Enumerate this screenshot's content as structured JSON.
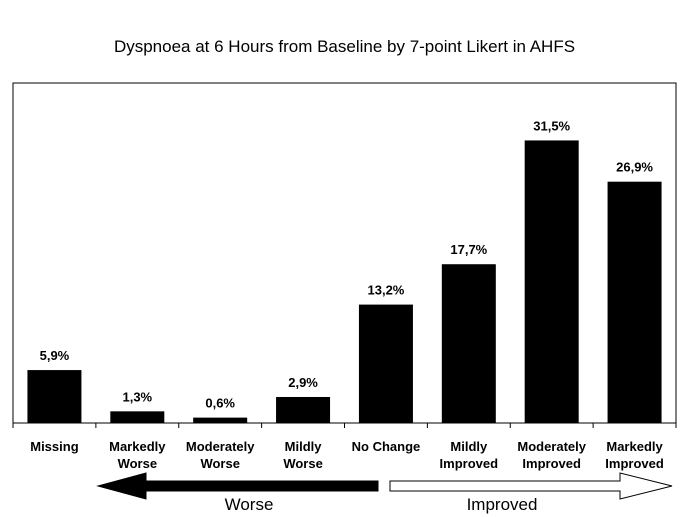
{
  "chart_data": {
    "type": "bar",
    "title": "Dyspnoea at 6 Hours from Baseline by 7-point Likert in AHFS",
    "xlabel": "",
    "ylabel": "",
    "categories": [
      [
        "Missing"
      ],
      [
        "Markedly",
        "Worse"
      ],
      [
        "Moderately",
        "Worse"
      ],
      [
        "Mildly",
        "Worse"
      ],
      [
        "No Change"
      ],
      [
        "Mildly",
        "Improved"
      ],
      [
        "Moderately",
        "Improved"
      ],
      [
        "Markedly",
        "Improved"
      ]
    ],
    "values": [
      5.9,
      1.3,
      0.6,
      2.9,
      13.2,
      17.7,
      31.5,
      26.9
    ],
    "data_labels": [
      "5,9%",
      "1,3%",
      "0,6%",
      "2,9%",
      "13,2%",
      "17,7%",
      "31,5%",
      "26,9%"
    ],
    "ylim": [
      0,
      34
    ],
    "bar_color": "#000000",
    "grid": false,
    "legend": "none",
    "annotations": {
      "worse_label": "Worse",
      "improved_label": "Improved"
    }
  }
}
